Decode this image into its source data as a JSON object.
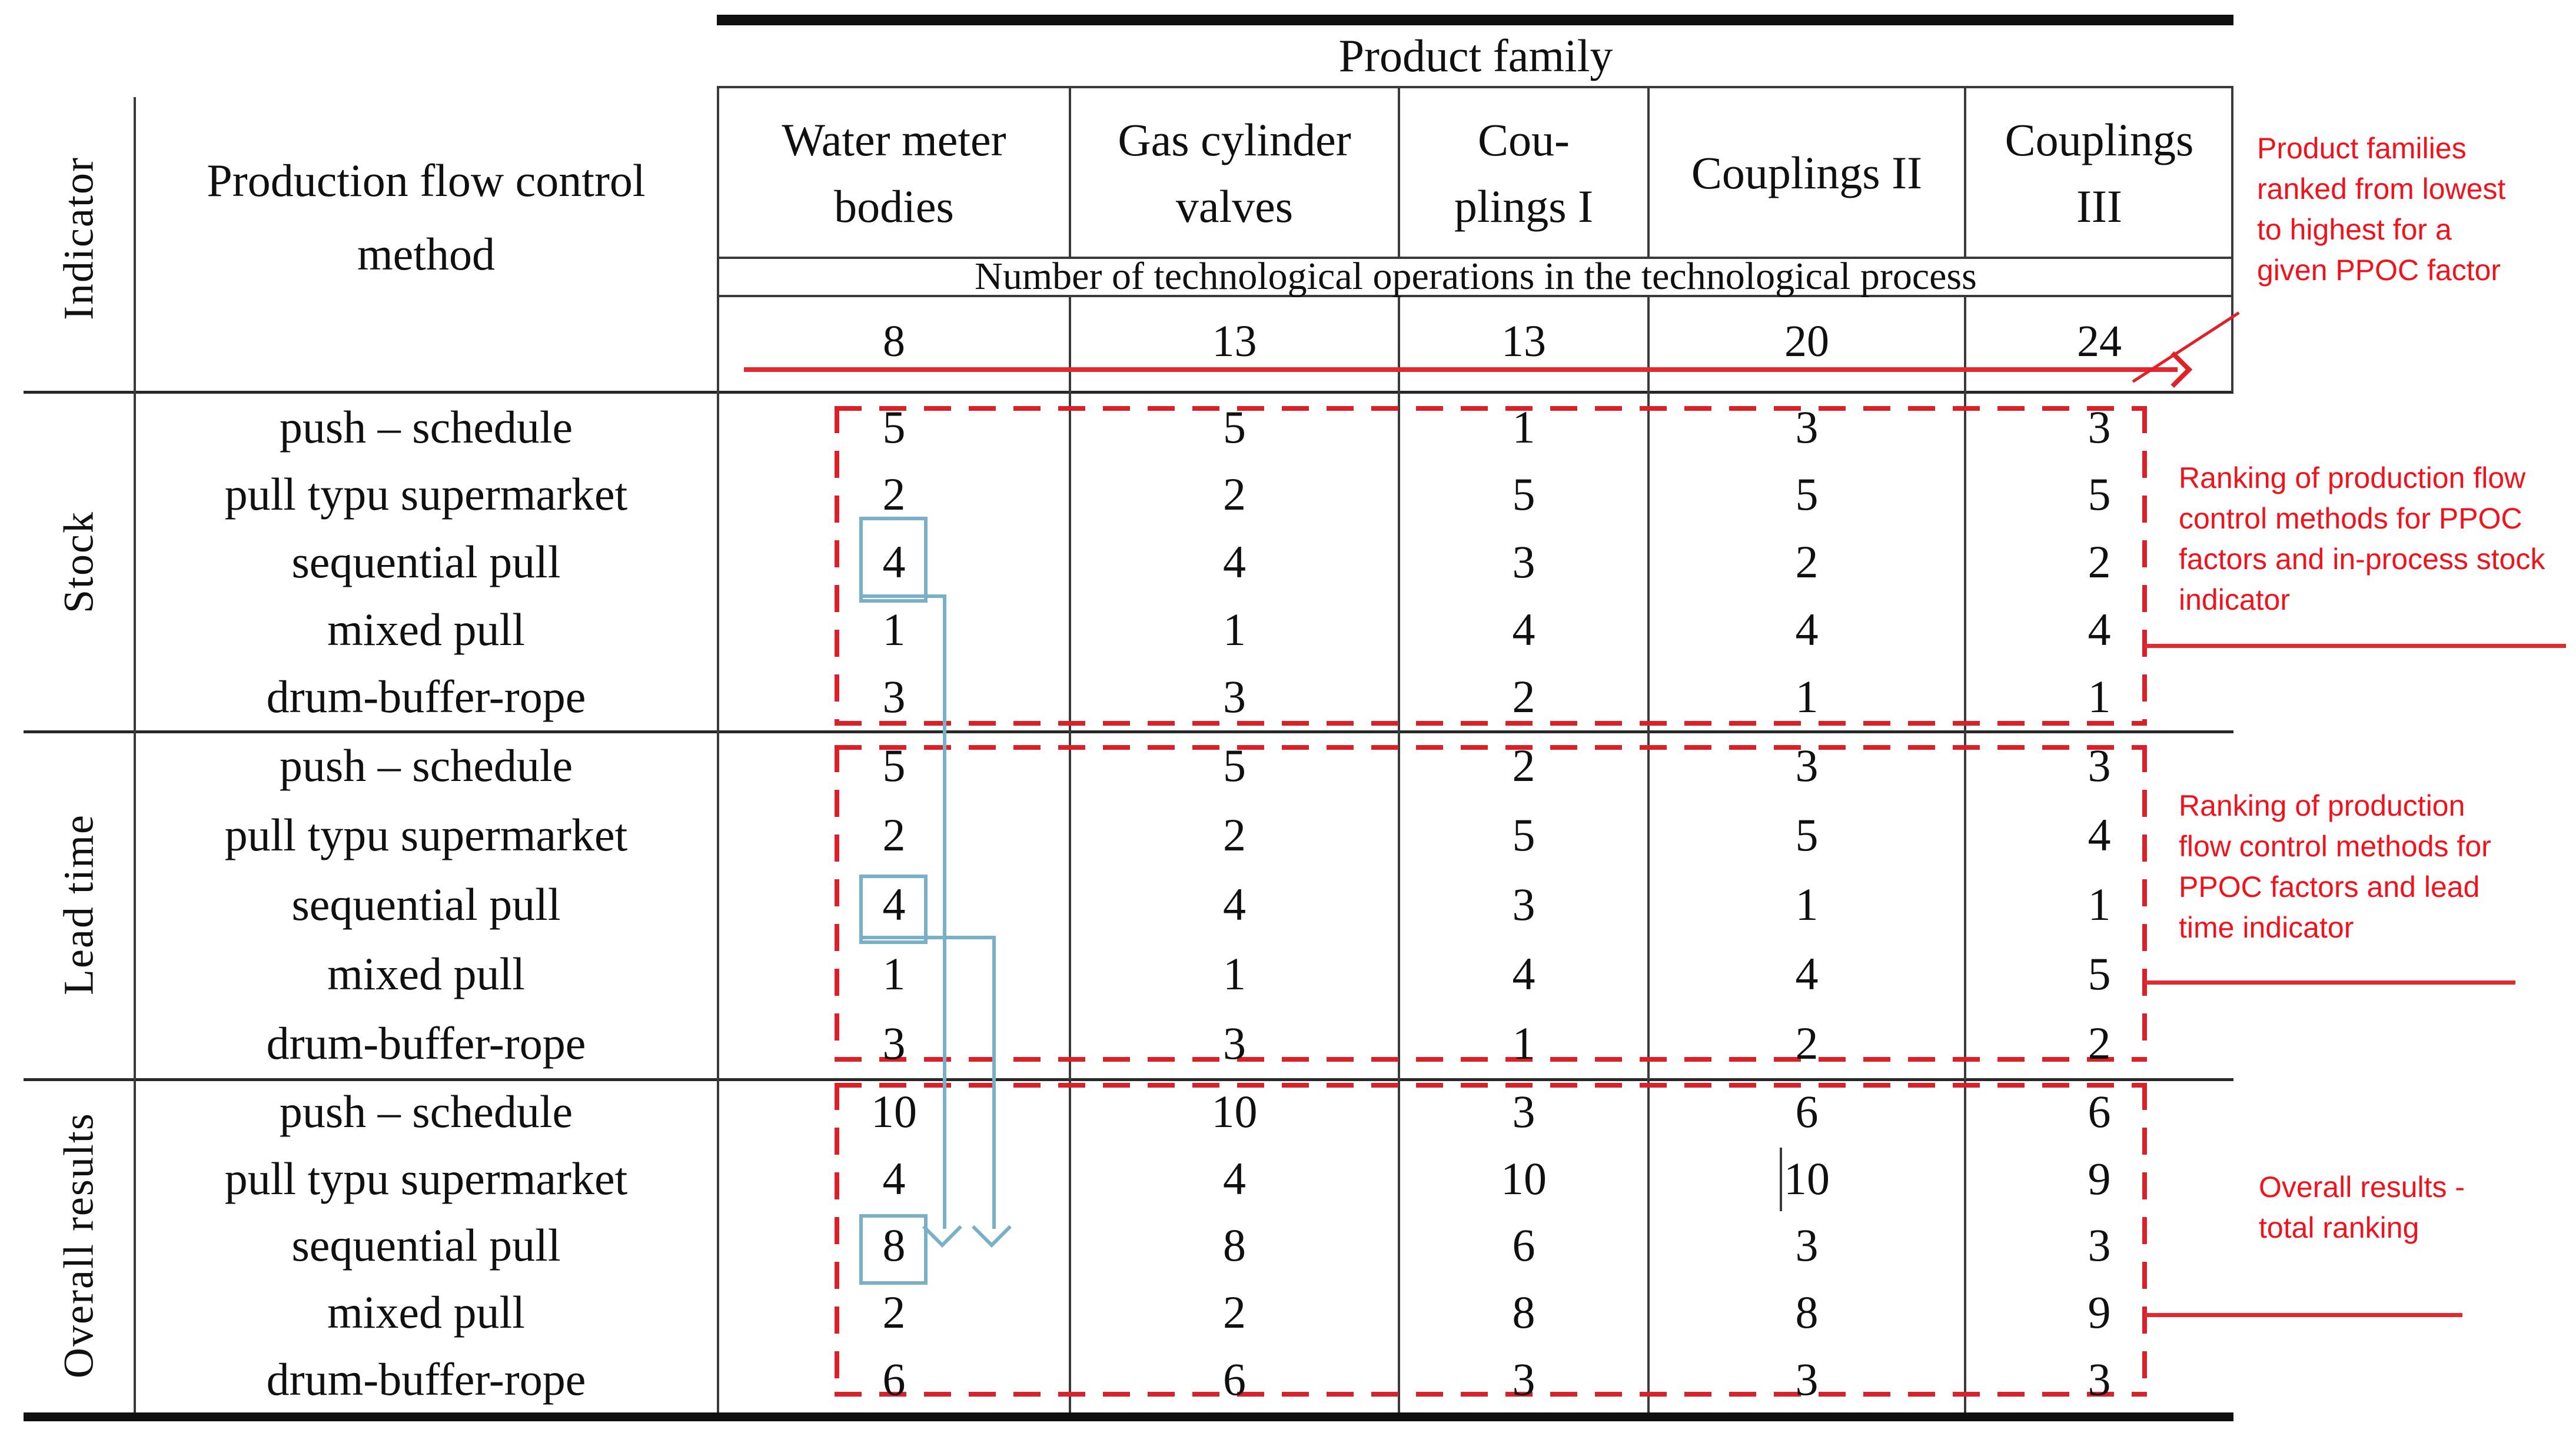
{
  "table": {
    "indicator_header": "Indicator",
    "method_header": "Production flow control\nmethod",
    "product_family_header": "Product family",
    "ops_header": "Number of technological operations in the technological process",
    "columns": [
      {
        "name": "Water meter\nbodies",
        "operations": "8"
      },
      {
        "name": "Gas cylinder\nvalves",
        "operations": "13"
      },
      {
        "name": "Cou-\nplings I",
        "operations": "13"
      },
      {
        "name": "Couplings II",
        "operations": "20"
      },
      {
        "name": "Couplings\nIII",
        "operations": "24"
      }
    ],
    "sections": [
      {
        "indicator": "Stock",
        "rows": [
          {
            "method": "push – schedule",
            "values": [
              "5",
              "5",
              "1",
              "3",
              "3"
            ]
          },
          {
            "method": "pull typu supermarket",
            "values": [
              "2",
              "2",
              "5",
              "5",
              "5"
            ]
          },
          {
            "method": "sequential pull",
            "values": [
              "4",
              "4",
              "3",
              "2",
              "2"
            ],
            "highlighted_value_column": 0
          },
          {
            "method": "mixed pull",
            "values": [
              "1",
              "1",
              "4",
              "4",
              "4"
            ]
          },
          {
            "method": "drum-buffer-rope",
            "values": [
              "3",
              "3",
              "2",
              "1",
              "1"
            ]
          }
        ]
      },
      {
        "indicator": "Lead time",
        "rows": [
          {
            "method": "push – schedule",
            "values": [
              "5",
              "5",
              "2",
              "3",
              "3"
            ]
          },
          {
            "method": "pull typu supermarket",
            "values": [
              "2",
              "2",
              "5",
              "5",
              "4"
            ]
          },
          {
            "method": "sequential pull",
            "values": [
              "4",
              "4",
              "3",
              "1",
              "1"
            ],
            "highlighted_value_column": 0
          },
          {
            "method": "mixed pull",
            "values": [
              "1",
              "1",
              "4",
              "4",
              "5"
            ]
          },
          {
            "method": "drum-buffer-rope",
            "values": [
              "3",
              "3",
              "1",
              "2",
              "2"
            ]
          }
        ]
      },
      {
        "indicator": "Overall results",
        "rows": [
          {
            "method": "push – schedule",
            "values": [
              "10",
              "10",
              "3",
              "6",
              "6"
            ]
          },
          {
            "method": "pull typu supermarket",
            "values": [
              "4",
              "4",
              "10",
              "10",
              "9"
            ]
          },
          {
            "method": "sequential pull",
            "values": [
              "8",
              "8",
              "6",
              "3",
              "3"
            ],
            "highlighted_value_column": 0
          },
          {
            "method": "mixed pull",
            "values": [
              "2",
              "2",
              "8",
              "8",
              "9"
            ]
          },
          {
            "method": "drum-buffer-rope",
            "values": [
              "6",
              "6",
              "3",
              "3",
              "3"
            ]
          }
        ]
      }
    ]
  },
  "annotations": {
    "top_right": "Product families\nranked from lowest\nto highest for a\ngiven PPOC factor",
    "stock": "Ranking of production flow\ncontrol methods for PPOC\nfactors and in-process stock\nindicator",
    "lead_time": "Ranking of production\nflow control methods for\nPPOC factors and lead\ntime indicator",
    "overall": "Overall results -\ntotal ranking"
  },
  "colors": {
    "annotation_red": "#f2121b",
    "dash_red": "#da2128",
    "highlight_blue": "#79afc7"
  }
}
